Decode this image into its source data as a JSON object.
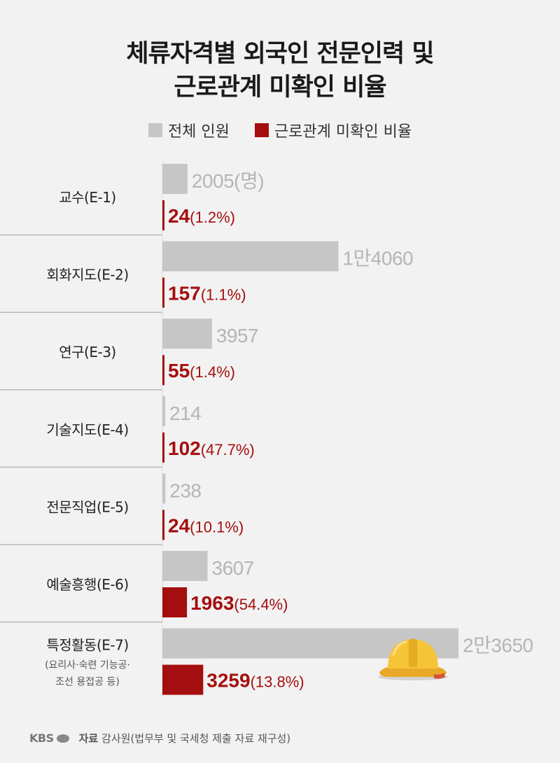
{
  "title_line1": "체류자격별 외국인 전문인력 및",
  "title_line2": "근로관계 미확인 비율",
  "legend": [
    {
      "label": "전체 인원",
      "color": "#c6c6c6"
    },
    {
      "label": "근로관계 미확인 비율",
      "color": "#a50e0e"
    }
  ],
  "chart_data": {
    "type": "bar",
    "orientation": "horizontal",
    "categories": [
      {
        "label": "교수(E-1)",
        "sub": []
      },
      {
        "label": "회화지도(E-2)",
        "sub": []
      },
      {
        "label": "연구(E-3)",
        "sub": []
      },
      {
        "label": "기술지도(E-4)",
        "sub": []
      },
      {
        "label": "전문직업(E-5)",
        "sub": []
      },
      {
        "label": "예술흥행(E-6)",
        "sub": []
      },
      {
        "label": "특정활동(E-7)",
        "sub": [
          "(요리사·숙련 기능공·",
          "조선 용접공 등)"
        ]
      }
    ],
    "series": [
      {
        "name": "전체 인원",
        "color": "#c6c6c6",
        "values": [
          2005,
          14060,
          3957,
          214,
          238,
          3607,
          23650
        ],
        "labels": [
          "2005(명)",
          "1만4060",
          "3957",
          "214",
          "238",
          "3607",
          "2만3650"
        ]
      },
      {
        "name": "근로관계 미확인 비율",
        "color": "#a50e0e",
        "values": [
          24,
          157,
          55,
          102,
          24,
          1963,
          3259
        ],
        "labels": [
          "24",
          "157",
          "55",
          "102",
          "24",
          "1963",
          "3259"
        ],
        "pct": [
          "(1.2%)",
          "(1.1%)",
          "(1.4%)",
          "(47.7%)",
          "(10.1%)",
          "(54.4%)",
          "(13.8%)"
        ]
      }
    ],
    "xlim": [
      0,
      23650
    ],
    "grid": false,
    "legend_position": "top"
  },
  "icon": "hard-hat-icon",
  "footer": {
    "logo": "KBS",
    "source_label": "자료",
    "source_text": "감사원(법무부 및 국세청 제출 자료 재구성)"
  }
}
